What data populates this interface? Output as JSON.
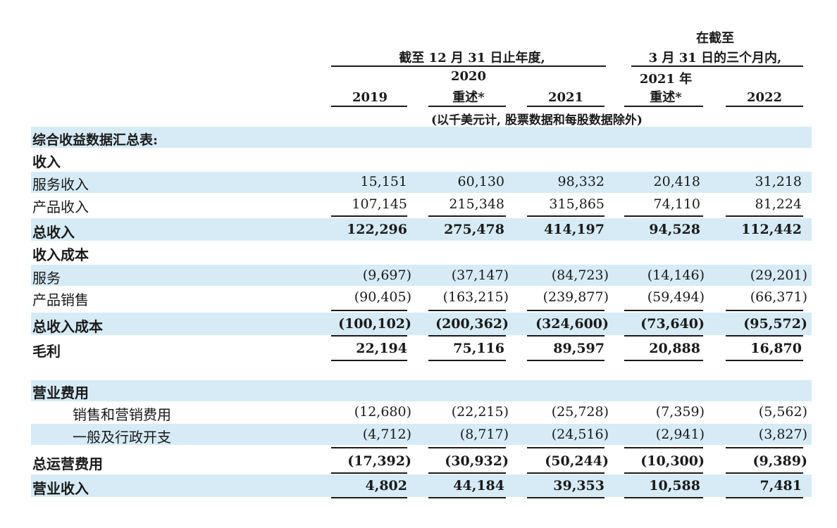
{
  "header": {
    "group_q_line1": "在截至",
    "group_q_line2": "3 月 31 日的三个月内,",
    "group_year": "截至 12 月 31 日止年度,",
    "col_2019": "2019",
    "col_2020_top": "2020",
    "col_2020_sub": "重述*",
    "col_2021": "2021",
    "col_q2021_top": "2021 年",
    "col_q2021_sub": "重述*",
    "col_2022": "2022",
    "unit_note": "(以千美元计, 股票数据和每股数据除外)"
  },
  "rows": [
    {
      "label": "综合收益数据汇总表:",
      "values": []
    },
    {
      "label": "收入",
      "values": []
    },
    {
      "label": "服务收入",
      "values": [
        "15,151",
        "60,130",
        "98,332",
        "20,418",
        "31,218"
      ]
    },
    {
      "label": "产品收入",
      "values": [
        "107,145",
        "215,348",
        "315,865",
        "74,110",
        "81,224"
      ]
    },
    {
      "label": "总收入",
      "values": [
        "122,296",
        "275,478",
        "414,197",
        "94,528",
        "112,442"
      ]
    },
    {
      "label": "收入成本",
      "values": []
    },
    {
      "label": "服务",
      "values": [
        "(9,697)",
        "(37,147)",
        "(84,723)",
        "(14,146)",
        "(29,201)"
      ]
    },
    {
      "label": "产品销售",
      "values": [
        "(90,405)",
        "(163,215)",
        "(239,877)",
        "(59,494)",
        "(66,371)"
      ]
    },
    {
      "label": "总收入成本",
      "values": [
        "(100,102)",
        "(200,362)",
        "(324,600)",
        "(73,640)",
        "(95,572)"
      ]
    },
    {
      "label": "毛利",
      "values": [
        "22,194",
        "75,116",
        "89,597",
        "20,888",
        "16,870"
      ]
    },
    {
      "label": "营业费用",
      "values": []
    },
    {
      "label": "销售和营销费用",
      "values": [
        "(12,680)",
        "(22,215)",
        "(25,728)",
        "(7,359)",
        "(5,562)"
      ]
    },
    {
      "label": "一般及行政开支",
      "values": [
        "(4,712)",
        "(8,717)",
        "(24,516)",
        "(2,941)",
        "(3,827)"
      ]
    },
    {
      "label": "总运营费用",
      "values": [
        "(17,392)",
        "(30,932)",
        "(50,244)",
        "(10,300)",
        "(9,389)"
      ]
    },
    {
      "label": "营业收入",
      "values": [
        "4,802",
        "44,184",
        "39,353",
        "10,588",
        "7,481"
      ]
    }
  ]
}
